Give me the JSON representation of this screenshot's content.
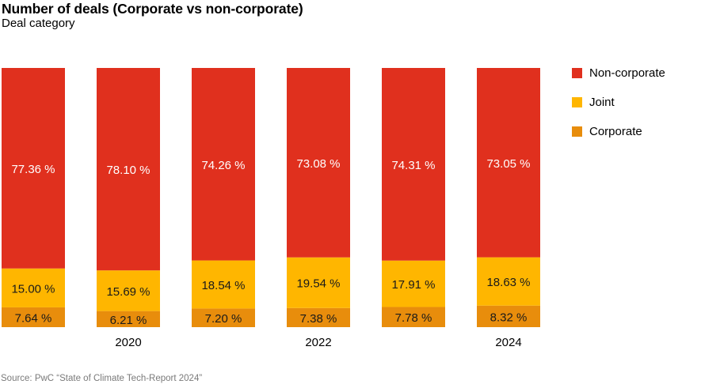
{
  "chart_data": {
    "type": "bar",
    "stacked": true,
    "title": "Number of deals (Corporate vs non-corporate)",
    "subtitle": "Deal category",
    "xlabel": "",
    "ylabel": "",
    "ylim": [
      0,
      100
    ],
    "grid": false,
    "legend_position": "right",
    "categories": [
      "",
      "2020",
      "",
      "2022",
      "",
      "2024"
    ],
    "series": [
      {
        "name": "Corporate",
        "color": "#E88D0C",
        "values": [
          7.64,
          6.21,
          7.2,
          7.38,
          7.78,
          8.32
        ],
        "labels": [
          "7.64 %",
          "6.21 %",
          "7.20 %",
          "7.38 %",
          "7.78 %",
          "8.32 %"
        ],
        "label_color": "#1a1a1a"
      },
      {
        "name": "Joint",
        "color": "#FFB600",
        "values": [
          15.0,
          15.69,
          18.54,
          19.54,
          17.91,
          18.63
        ],
        "labels": [
          "15.00 %",
          "15.69 %",
          "18.54 %",
          "19.54 %",
          "17.91 %",
          "18.63 %"
        ],
        "label_color": "#1a1a1a"
      },
      {
        "name": "Non-corporate",
        "color": "#E0301E",
        "values": [
          77.36,
          78.1,
          74.26,
          73.08,
          74.31,
          73.05
        ],
        "labels": [
          "77.36 %",
          "78.10 %",
          "74.26 %",
          "73.08 %",
          "74.31 %",
          "73.05 %"
        ],
        "label_color": "#ffffff"
      }
    ],
    "legend": [
      {
        "name": "Non-corporate",
        "color": "#E0301E"
      },
      {
        "name": "Joint",
        "color": "#FFB600"
      },
      {
        "name": "Corporate",
        "color": "#E88D0C"
      }
    ],
    "source": "Source: PwC “State of Climate Tech-Report 2024”"
  }
}
